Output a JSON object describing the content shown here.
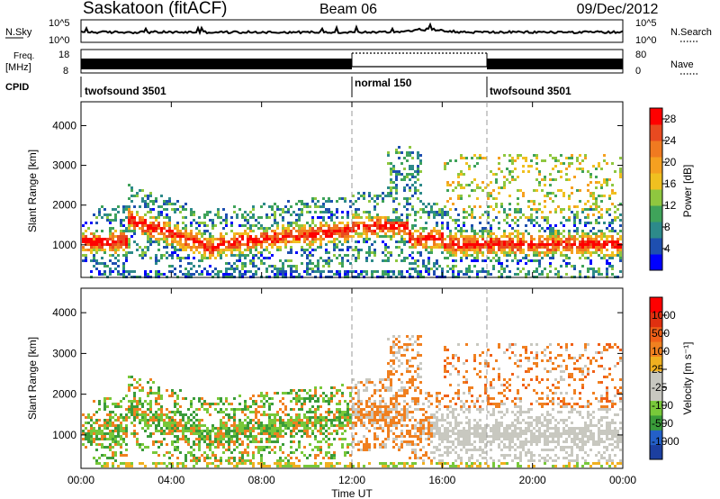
{
  "header": {
    "title": "Saskatoon (fitACF)",
    "beam": "Beam 06",
    "date": "09/Dec/2012"
  },
  "summary": {
    "nsky_label": "N.Sky",
    "nsky_ticks": [
      "10^5",
      "10^0"
    ],
    "nsearch_label": "N.Search",
    "freq_label_line1": "Freq.",
    "freq_label_line2": "[MHz]",
    "freq_ticks": [
      "18",
      "8"
    ],
    "nave_label": "Nave",
    "nave_ticks": [
      "80",
      "0"
    ],
    "cpid_label": "CPID",
    "cpid_segments": [
      {
        "label": "twofsound 3501",
        "start_hour": 0,
        "end_hour": 12
      },
      {
        "label": "normal 150",
        "start_hour": 12,
        "end_hour": 18
      },
      {
        "label": "twofsound 3501",
        "start_hour": 18,
        "end_hour": 24
      }
    ]
  },
  "chart_data": [
    {
      "type": "heatmap",
      "title": "",
      "xlabel": "Time UT",
      "ylabel": "Slant Range [km]",
      "xlim": [
        0,
        24
      ],
      "ylim": [
        180,
        4600
      ],
      "yticks": [
        "1000",
        "2000",
        "3000",
        "4000"
      ],
      "colorbar": {
        "label": "Power [dB]",
        "ticks": [
          "4",
          "8",
          "12",
          "16",
          "20",
          "24",
          "28"
        ],
        "colors": [
          "#0000ff",
          "#1e4fb0",
          "#2d8a8a",
          "#3fa35a",
          "#8fc73f",
          "#f0c020",
          "#f5a020",
          "#f07a20",
          "#e84a20",
          "#ff0000"
        ],
        "range": [
          0,
          30
        ]
      }
    },
    {
      "type": "heatmap",
      "title": "",
      "xlabel": "Time UT",
      "ylabel": "Slant Range [km]",
      "xlim": [
        0,
        24
      ],
      "ylim": [
        180,
        4600
      ],
      "yticks": [
        "1000",
        "2000",
        "3000",
        "4000"
      ],
      "colorbar": {
        "label": "Velocity [m s⁻¹]",
        "ticks": [
          "1000",
          "500",
          "100",
          "25",
          "-25",
          "-100",
          "-500",
          "-1000"
        ],
        "colors": [
          "#1c3fa0",
          "#2460c8",
          "#3a9c3a",
          "#78c83a",
          "#c8c8c0",
          "#c8c8c0",
          "#f0b020",
          "#f08020",
          "#f06018",
          "#e03010",
          "#ff0000"
        ]
      }
    }
  ],
  "xaxis": {
    "ticks": [
      "00:00",
      "04:00",
      "08:00",
      "12:00",
      "16:00",
      "20:00",
      "00:00"
    ],
    "label": "Time UT"
  }
}
